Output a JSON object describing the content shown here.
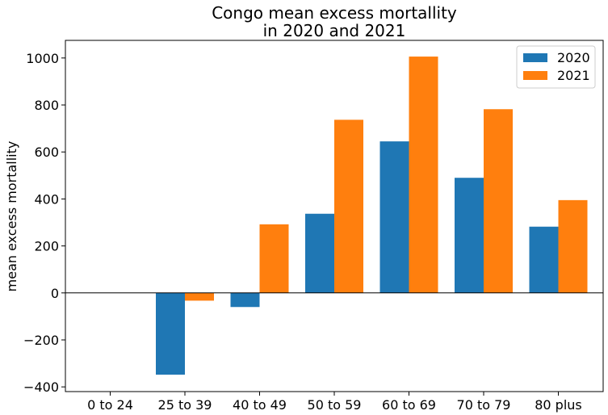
{
  "chart_data": {
    "type": "bar",
    "title_lines": [
      "Congo mean excess mortallity",
      "in 2020 and 2021"
    ],
    "xlabel": "",
    "ylabel": "mean excess mortallity",
    "categories": [
      "0 to 24",
      "25 to 39",
      "40 to 49",
      "50 to 59",
      "60 to 69",
      "70 to 79",
      "80 plus"
    ],
    "series": [
      {
        "name": "2020",
        "color": "#1f77b4",
        "values": [
          0,
          -348,
          -60,
          337,
          645,
          490,
          282
        ]
      },
      {
        "name": "2021",
        "color": "#ff7f0e",
        "values": [
          0,
          -33,
          292,
          737,
          1006,
          782,
          395
        ]
      }
    ],
    "ylim": [
      -420,
      1075
    ],
    "yticks": [
      -400,
      -200,
      0,
      200,
      400,
      600,
      800,
      1000
    ],
    "ytick_labels": [
      "−400",
      "−200",
      "0",
      "200",
      "400",
      "600",
      "800",
      "1000"
    ],
    "zero_line": true,
    "legend_position": "top-right"
  }
}
